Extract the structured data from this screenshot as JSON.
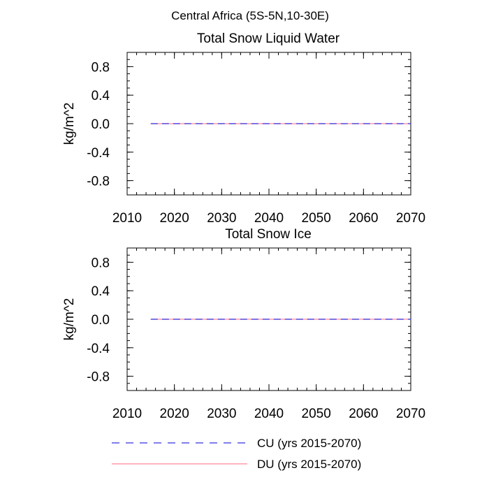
{
  "figure_title": "Central Africa (5S-5N,10-30E)",
  "colors": {
    "cu": "#3333dd",
    "du": "#ff8899",
    "axis": "#000000"
  },
  "legend": [
    {
      "key": "cu",
      "label": "CU (yrs 2015-2070)",
      "style": "dashed"
    },
    {
      "key": "du",
      "label": "DU (yrs 2015-2070)",
      "style": "solid"
    }
  ],
  "chart_data": [
    {
      "type": "line",
      "title": "Total Snow Liquid Water",
      "xlabel": "",
      "ylabel": "kg/m^2",
      "xlim": [
        2010,
        2070
      ],
      "ylim": [
        -1.0,
        1.0
      ],
      "xticks": [
        2010,
        2020,
        2030,
        2040,
        2050,
        2060,
        2070
      ],
      "xtick_labels": [
        "2010",
        "2020",
        "2030",
        "2040",
        "2050",
        "2060",
        "2070"
      ],
      "yticks": [
        0.8,
        0.4,
        0.0,
        -0.4,
        -0.8
      ],
      "ytick_labels": [
        "0.8",
        "0.4",
        "0.0",
        "-0.4",
        "-0.8"
      ],
      "series": [
        {
          "name": "CU (yrs 2015-2070)",
          "style": "dashed",
          "x": [
            2015,
            2070
          ],
          "values": [
            0.0,
            0.0
          ]
        },
        {
          "name": "DU (yrs 2015-2070)",
          "style": "solid",
          "x": [
            2015,
            2070
          ],
          "values": [
            0.0,
            0.0
          ]
        }
      ]
    },
    {
      "type": "line",
      "title": "Total Snow Ice",
      "xlabel": "",
      "ylabel": "kg/m^2",
      "xlim": [
        2010,
        2070
      ],
      "ylim": [
        -1.0,
        1.0
      ],
      "xticks": [
        2010,
        2020,
        2030,
        2040,
        2050,
        2060,
        2070
      ],
      "xtick_labels": [
        "2010",
        "2020",
        "2030",
        "2040",
        "2050",
        "2060",
        "2070"
      ],
      "yticks": [
        0.8,
        0.4,
        0.0,
        -0.4,
        -0.8
      ],
      "ytick_labels": [
        "0.8",
        "0.4",
        "0.0",
        "-0.4",
        "-0.8"
      ],
      "series": [
        {
          "name": "CU (yrs 2015-2070)",
          "style": "dashed",
          "x": [
            2015,
            2070
          ],
          "values": [
            0.0,
            0.0
          ]
        },
        {
          "name": "DU (yrs 2015-2070)",
          "style": "solid",
          "x": [
            2015,
            2070
          ],
          "values": [
            0.0,
            0.0
          ]
        }
      ]
    }
  ]
}
